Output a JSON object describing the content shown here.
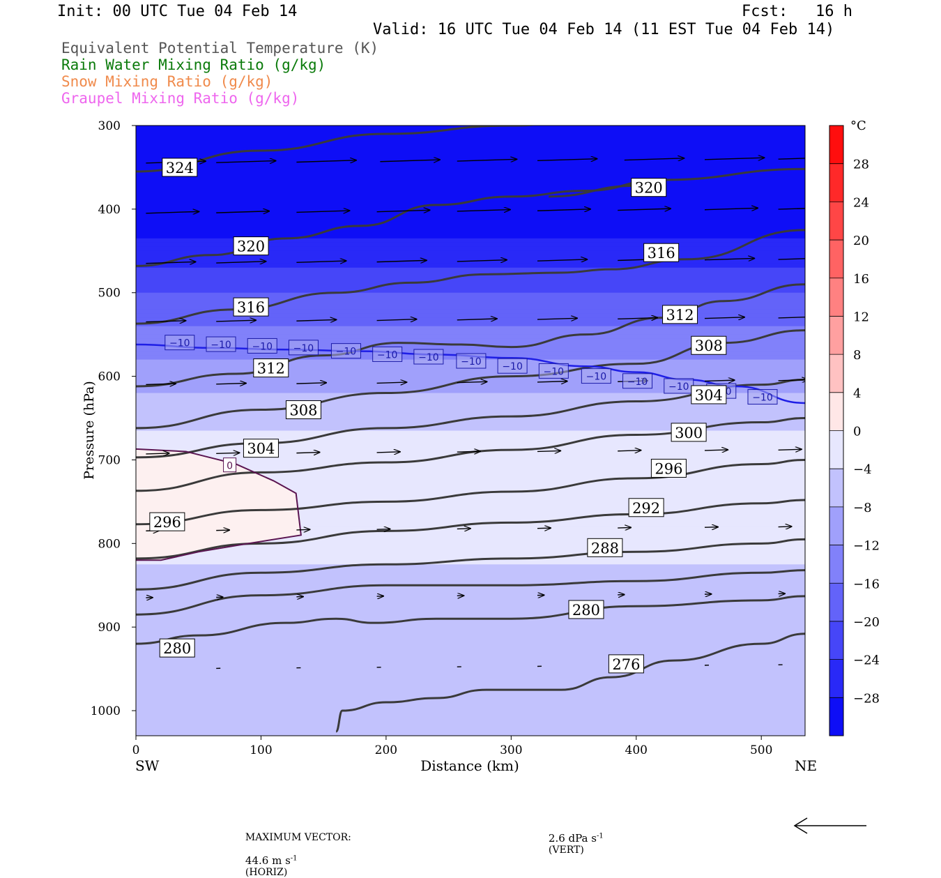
{
  "header": {
    "init": "Init: 00 UTC Tue 04 Feb 14",
    "fcst": "Fcst:   16 h",
    "valid": "Valid: 16 UTC Tue 04 Feb 14 (11 EST Tue 04 Feb 14)"
  },
  "fields": [
    {
      "label": "Equivalent Potential Temperature (K)",
      "color": "#555555"
    },
    {
      "label": "Rain Water Mixing Ratio (g/kg)",
      "color": "#0a7a0a"
    },
    {
      "label": "Snow Mixing Ratio (g/kg)",
      "color": "#f08a4b"
    },
    {
      "label": "Graupel Mixing Ratio (g/kg)",
      "color": "#ee66ee"
    }
  ],
  "footer": {
    "max_vector_label": "MAXIMUM VECTOR:",
    "horiz_value": "44.6 m s",
    "horiz_unit": "(HORIZ)",
    "vert_value": "2.6 dPa s",
    "vert_unit": "(VERT)",
    "exponent": "-1"
  },
  "chart_data": {
    "type": "contour",
    "xlabel": "Distance (km)",
    "ylabel": "Pressure (hPa)",
    "xlim": [
      0,
      535
    ],
    "ylim": [
      1030,
      300
    ],
    "x_ticks": [
      0,
      100,
      200,
      300,
      400,
      500
    ],
    "y_ticks": [
      300,
      400,
      500,
      600,
      700,
      800,
      900,
      1000
    ],
    "left_end_label": "SW",
    "right_end_label": "NE",
    "colorbar": {
      "unit": "°C",
      "tick_values": [
        28,
        24,
        20,
        16,
        12,
        8,
        4,
        0,
        -4,
        -8,
        -12,
        -16,
        -20,
        -24,
        -28
      ],
      "tick_labels": [
        "28",
        "24",
        "20",
        "16",
        "12",
        "8",
        "4",
        "0",
        "−4",
        "−8",
        "−12",
        "−16",
        "−20",
        "−24",
        "−28"
      ],
      "range": [
        -32,
        32
      ],
      "cold_color": "#0000f5",
      "zero_color": "#ffffff",
      "warm_color": "#ff0000"
    },
    "theta_e_contours": [
      {
        "level": 324,
        "points": [
          [
            0,
            355
          ],
          [
            100,
            330
          ],
          [
            200,
            310
          ],
          [
            300,
            300
          ],
          [
            400,
            285
          ],
          [
            470,
            278
          ],
          [
            535,
            272
          ]
        ],
        "label_at": [
          35,
          350
        ],
        "label": "324"
      },
      {
        "level": 320,
        "points": [
          [
            0,
            468
          ],
          [
            60,
            455
          ],
          [
            120,
            435
          ],
          [
            180,
            420
          ],
          [
            240,
            395
          ],
          [
            300,
            385
          ],
          [
            360,
            378
          ],
          [
            420,
            365
          ],
          [
            535,
            352
          ]
        ],
        "label_at": [
          92,
          444
        ],
        "label": "320"
      },
      {
        "level": 320,
        "points": [
          [
            330,
            385
          ],
          [
            400,
            372
          ]
        ],
        "label_at": [
          410,
          374
        ],
        "label": "320"
      },
      {
        "level": 316,
        "points": [
          [
            0,
            537
          ],
          [
            80,
            520
          ],
          [
            160,
            500
          ],
          [
            220,
            488
          ],
          [
            280,
            478
          ],
          [
            340,
            476
          ],
          [
            380,
            472
          ],
          [
            440,
            460
          ],
          [
            535,
            425
          ]
        ],
        "label_at": [
          92,
          517
        ],
        "label": "316"
      },
      {
        "level": 316,
        "points": [],
        "label_at": [
          420,
          452
        ],
        "label": "316"
      },
      {
        "level": 312,
        "points": [
          [
            0,
            612
          ],
          [
            80,
            597
          ],
          [
            150,
            575
          ],
          [
            210,
            560
          ],
          [
            260,
            562
          ],
          [
            300,
            565
          ],
          [
            360,
            550
          ],
          [
            420,
            530
          ],
          [
            470,
            510
          ],
          [
            535,
            490
          ]
        ],
        "label_at": [
          108,
          590
        ],
        "label": "312"
      },
      {
        "level": 312,
        "points": [],
        "label_at": [
          435,
          526
        ],
        "label": "312"
      },
      {
        "level": 308,
        "points": [
          [
            0,
            662
          ],
          [
            100,
            640
          ],
          [
            200,
            620
          ],
          [
            300,
            600
          ],
          [
            400,
            585
          ],
          [
            470,
            560
          ],
          [
            535,
            545
          ]
        ],
        "label_at": [
          134,
          640
        ],
        "label": "308"
      },
      {
        "level": 308,
        "points": [],
        "label_at": [
          458,
          563
        ],
        "label": "308"
      },
      {
        "level": 304,
        "points": [
          [
            0,
            697
          ],
          [
            100,
            680
          ],
          [
            200,
            662
          ],
          [
            300,
            648
          ],
          [
            400,
            630
          ],
          [
            500,
            610
          ],
          [
            535,
            604
          ]
        ],
        "label_at": [
          100,
          686
        ],
        "label": "304"
      },
      {
        "level": 304,
        "points": [],
        "label_at": [
          458,
          622
        ],
        "label": "304"
      },
      {
        "level": 300,
        "points": [
          [
            0,
            737
          ],
          [
            100,
            715
          ],
          [
            200,
            703
          ],
          [
            300,
            688
          ],
          [
            400,
            670
          ],
          [
            500,
            655
          ],
          [
            535,
            650
          ]
        ],
        "label_at": [
          442,
          667
        ],
        "label": "300"
      },
      {
        "level": 296,
        "points": [
          [
            0,
            777
          ],
          [
            100,
            760
          ],
          [
            200,
            750
          ],
          [
            300,
            738
          ],
          [
            400,
            722
          ],
          [
            500,
            705
          ],
          [
            535,
            700
          ]
        ],
        "label_at": [
          25,
          774
        ],
        "label": "296"
      },
      {
        "level": 296,
        "points": [],
        "label_at": [
          426,
          710
        ],
        "label": "296"
      },
      {
        "level": 292,
        "points": [
          [
            0,
            818
          ],
          [
            100,
            800
          ],
          [
            200,
            785
          ],
          [
            300,
            775
          ],
          [
            400,
            765
          ],
          [
            500,
            752
          ],
          [
            535,
            748
          ]
        ],
        "label_at": [
          408,
          757
        ],
        "label": "292"
      },
      {
        "level": 288,
        "points": [
          [
            0,
            855
          ],
          [
            100,
            835
          ],
          [
            200,
            825
          ],
          [
            300,
            818
          ],
          [
            400,
            810
          ],
          [
            500,
            800
          ],
          [
            535,
            795
          ]
        ],
        "label_at": [
          375,
          805
        ],
        "label": "288"
      },
      {
        "level": 284,
        "points": [
          [
            0,
            885
          ],
          [
            100,
            862
          ],
          [
            200,
            850
          ],
          [
            300,
            850
          ],
          [
            400,
            845
          ],
          [
            500,
            835
          ],
          [
            535,
            832
          ]
        ],
        "label_at": null,
        "label": ""
      },
      {
        "level": 280,
        "points": [
          [
            0,
            920
          ],
          [
            50,
            910
          ],
          [
            120,
            895
          ],
          [
            160,
            890
          ],
          [
            190,
            895
          ],
          [
            240,
            890
          ],
          [
            300,
            890
          ],
          [
            400,
            875
          ],
          [
            500,
            868
          ],
          [
            535,
            863
          ]
        ],
        "label_at": [
          33,
          925
        ],
        "label": "280"
      },
      {
        "level": 280,
        "points": [],
        "label_at": [
          360,
          879
        ],
        "label": "280"
      },
      {
        "level": 276,
        "points": [
          [
            160,
            1025
          ],
          [
            165,
            1000
          ],
          [
            200,
            990
          ],
          [
            240,
            985
          ],
          [
            280,
            975
          ],
          [
            340,
            975
          ],
          [
            380,
            960
          ],
          [
            430,
            940
          ],
          [
            500,
            920
          ],
          [
            535,
            908
          ]
        ],
        "label_at": [
          392,
          944
        ],
        "label": "276"
      }
    ],
    "zero_contour": {
      "level": 0,
      "label": "0",
      "color": "#5a1450",
      "points": [
        [
          0,
          687
        ],
        [
          40,
          690
        ],
        [
          80,
          705
        ],
        [
          110,
          725
        ],
        [
          128,
          740
        ],
        [
          132,
          790
        ],
        [
          90,
          800
        ],
        [
          50,
          810
        ],
        [
          20,
          820
        ],
        [
          0,
          820
        ]
      ],
      "label_at": [
        75,
        706
      ]
    },
    "minus10_contour": {
      "level": -10,
      "color": "#1e1ee6",
      "points": [
        [
          0,
          562
        ],
        [
          60,
          566
        ],
        [
          120,
          568
        ],
        [
          180,
          570
        ],
        [
          240,
          574
        ],
        [
          300,
          578
        ],
        [
          360,
          588
        ],
        [
          400,
          595
        ],
        [
          440,
          604
        ],
        [
          480,
          612
        ],
        [
          535,
          632
        ]
      ],
      "label_positions": [
        [
          35,
          560
        ],
        [
          68,
          562
        ],
        [
          101,
          564
        ],
        [
          134,
          566
        ],
        [
          168,
          570
        ],
        [
          201,
          574
        ],
        [
          234,
          577
        ],
        [
          268,
          582
        ],
        [
          301,
          588
        ],
        [
          334,
          594
        ],
        [
          368,
          600
        ],
        [
          401,
          606
        ],
        [
          434,
          612
        ],
        [
          468,
          618
        ],
        [
          501,
          625
        ]
      ],
      "label": "−10"
    },
    "shading": [
      {
        "p": 300,
        "temp": -32
      },
      {
        "p": 400,
        "temp": -30
      },
      {
        "p": 450,
        "temp": -27
      },
      {
        "p": 500,
        "temp": -20
      },
      {
        "p": 550,
        "temp": -15
      },
      {
        "p": 600,
        "temp": -10
      },
      {
        "p": 650,
        "temp": -5
      },
      {
        "p": 700,
        "temp": -2
      },
      {
        "p": 800,
        "temp": -3
      },
      {
        "p": 900,
        "temp": -7
      },
      {
        "p": 1000,
        "temp": -6
      }
    ],
    "wind_vectors": [
      {
        "p": 345,
        "x": [
          15,
          120,
          240,
          365,
          480,
          600,
          730,
          850,
          960
        ],
        "len": 0.9
      },
      {
        "p": 405,
        "x": [
          15,
          120,
          240,
          360,
          480,
          600,
          720,
          850,
          960
        ],
        "len": 0.8
      },
      {
        "p": 465,
        "x": [
          15,
          120,
          240,
          360,
          480,
          600,
          720,
          850,
          960
        ],
        "len": 0.75
      },
      {
        "p": 535,
        "x": [
          15,
          120,
          240,
          360,
          480,
          600,
          720,
          850,
          960
        ],
        "len": 0.6
      },
      {
        "p": 610,
        "x": [
          15,
          120,
          240,
          360,
          480,
          600,
          720,
          850,
          960
        ],
        "len": 0.45
      },
      {
        "p": 693,
        "x": [
          15,
          120,
          240,
          360,
          480,
          600,
          720,
          850,
          960
        ],
        "len": 0.35
      },
      {
        "p": 785,
        "x": [
          15,
          120,
          240,
          360,
          480,
          600,
          720,
          850,
          960
        ],
        "len": 0.2
      },
      {
        "p": 865,
        "x": [
          15,
          120,
          240,
          360,
          480,
          600,
          720,
          850,
          960
        ],
        "len": 0.1
      },
      {
        "p": 950,
        "x": [
          120,
          240,
          360,
          480,
          600,
          720,
          850,
          960
        ],
        "len": 0.05
      }
    ]
  }
}
